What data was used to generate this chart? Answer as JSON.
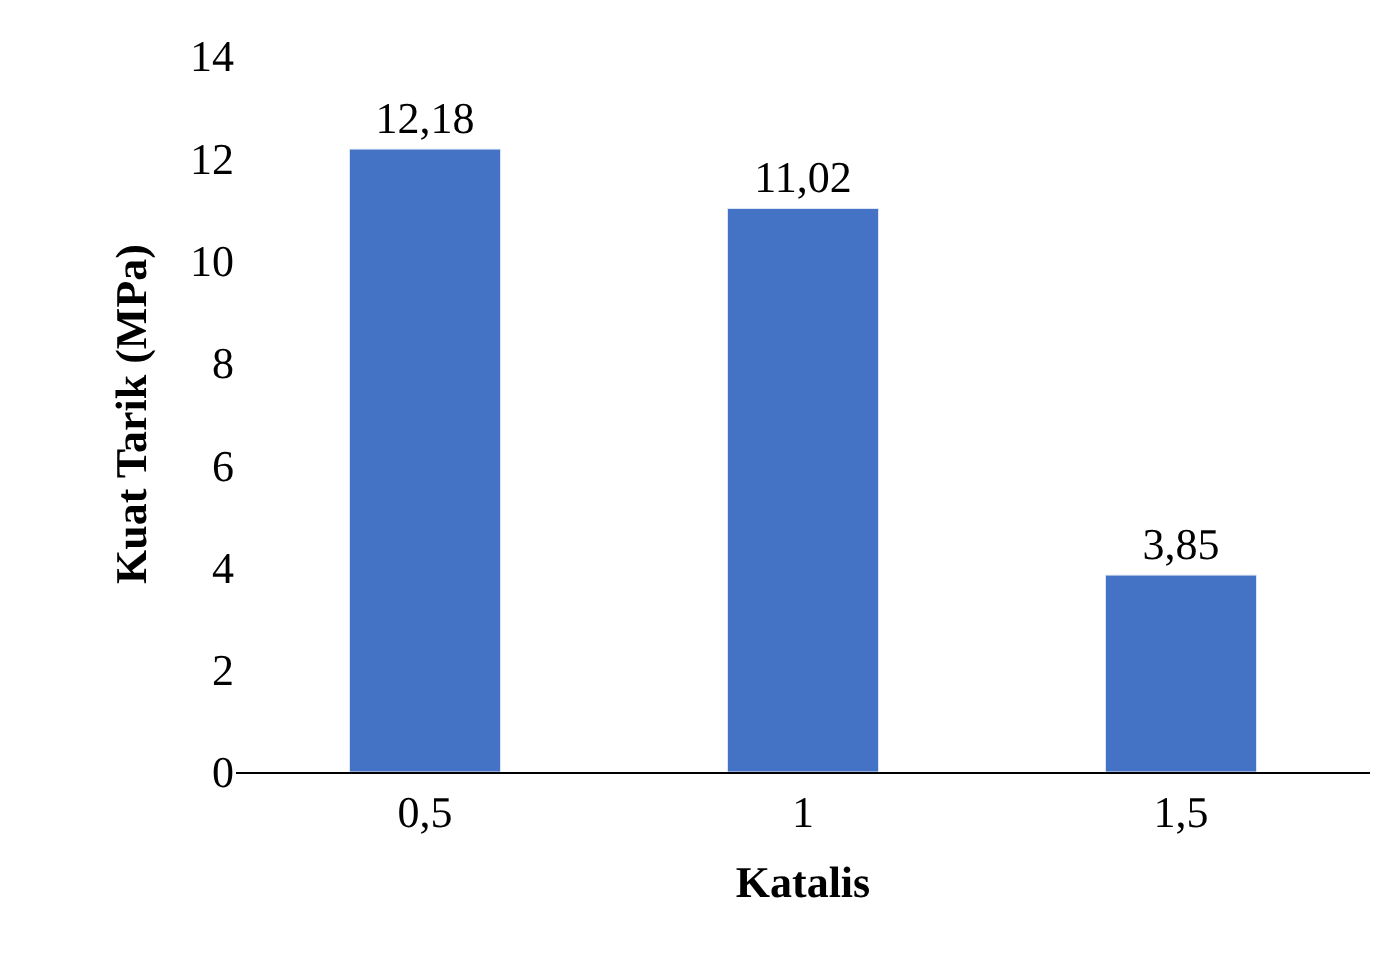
{
  "chart_data": {
    "type": "bar",
    "xlabel": "Katalis",
    "ylabel": "Kuat Tarik (MPa)",
    "categories": [
      "0,5",
      "1",
      "1,5"
    ],
    "values": [
      12.18,
      11.02,
      3.85
    ],
    "value_labels": [
      "12,18",
      "11,02",
      "3,85"
    ],
    "color": "#4472c4",
    "ylim": [
      0,
      14
    ],
    "yticks": [
      0,
      2,
      4,
      6,
      8,
      10,
      12,
      14
    ],
    "grid": false,
    "legend": false
  }
}
